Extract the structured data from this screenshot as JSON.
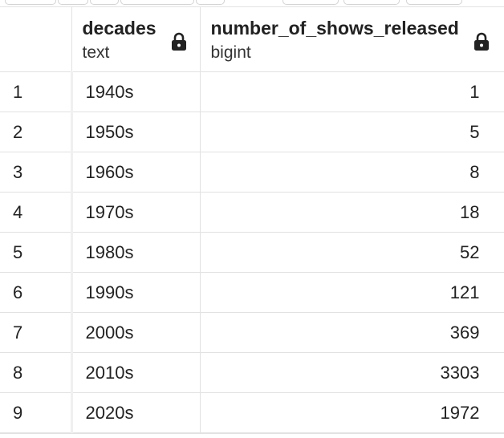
{
  "table": {
    "columns": [
      {
        "name": "decades",
        "type": "text"
      },
      {
        "name": "number_of_shows_released",
        "type": "bigint"
      }
    ],
    "rows": [
      {
        "index": "1",
        "decades": "1940s",
        "count": "1"
      },
      {
        "index": "2",
        "decades": "1950s",
        "count": "5"
      },
      {
        "index": "3",
        "decades": "1960s",
        "count": "8"
      },
      {
        "index": "4",
        "decades": "1970s",
        "count": "18"
      },
      {
        "index": "5",
        "decades": "1980s",
        "count": "52"
      },
      {
        "index": "6",
        "decades": "1990s",
        "count": "121"
      },
      {
        "index": "7",
        "decades": "2000s",
        "count": "369"
      },
      {
        "index": "8",
        "decades": "2010s",
        "count": "3303"
      },
      {
        "index": "9",
        "decades": "2020s",
        "count": "1972"
      }
    ]
  },
  "icons": {
    "lock": "lock-icon"
  }
}
